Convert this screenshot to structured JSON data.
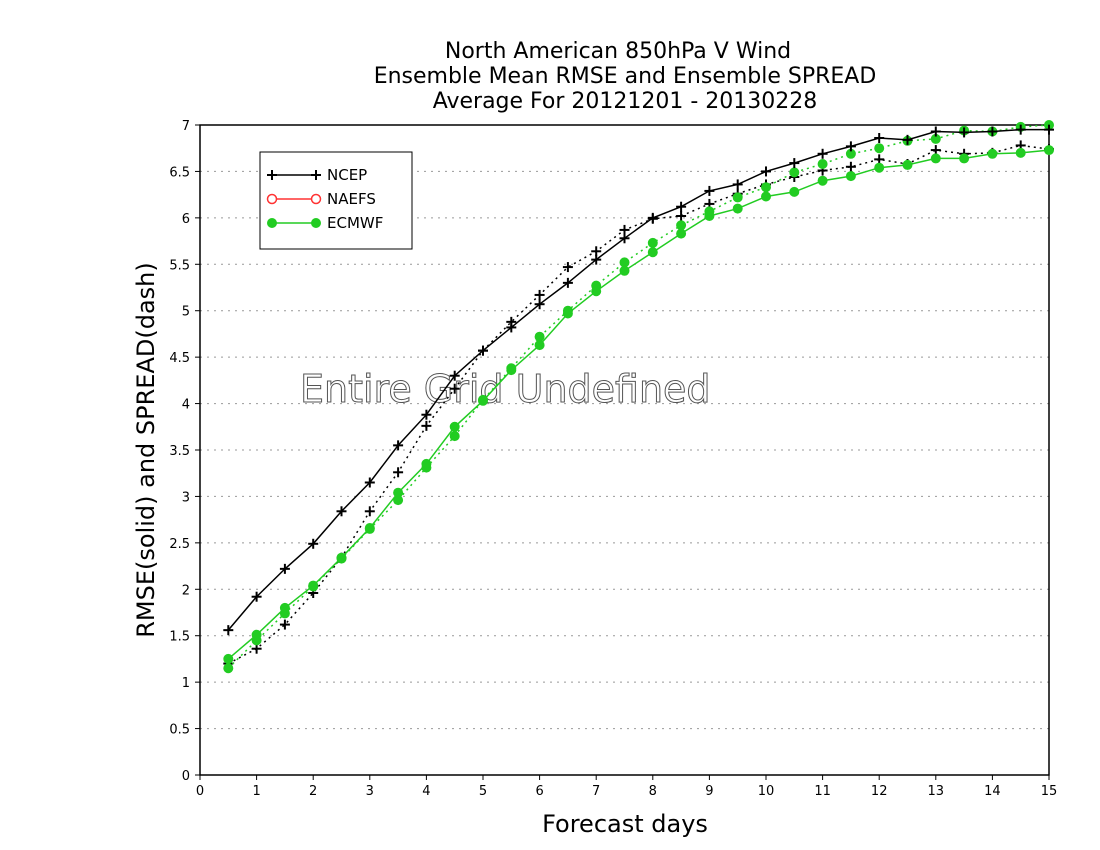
{
  "chart_data": {
    "type": "line",
    "title": [
      "North American 850hPa V Wind",
      "Ensemble Mean RMSE and Ensemble SPREAD",
      "Average For 20121201 - 20130228"
    ],
    "xlabel": "Forecast days",
    "ylabel": "RMSE(solid) and SPREAD(dash)",
    "xlim": [
      0,
      15
    ],
    "ylim": [
      0,
      7
    ],
    "xticks": [
      "0",
      "1",
      "2",
      "3",
      "4",
      "5",
      "6",
      "7",
      "8",
      "9",
      "10",
      "11",
      "12",
      "13",
      "14",
      "15"
    ],
    "yticks": [
      "0",
      "0.5",
      "1",
      "1.5",
      "2",
      "2.5",
      "3",
      "3.5",
      "4",
      "4.5",
      "5",
      "5.5",
      "6",
      "6.5",
      "7"
    ],
    "grid": "horizontal dotted",
    "legend_position": "top-left",
    "annotation": "Entire Grid Undefined",
    "x": [
      0.5,
      1,
      1.5,
      2,
      2.5,
      3,
      3.5,
      4,
      4.5,
      5,
      5.5,
      6,
      6.5,
      7,
      7.5,
      8,
      8.5,
      9,
      9.5,
      10,
      10.5,
      11,
      11.5,
      12,
      12.5,
      13,
      13.5,
      14,
      14.5,
      15
    ],
    "series": [
      {
        "name": "NCEP",
        "metric": "RMSE",
        "style": "solid",
        "marker": "plus",
        "color": "#000000",
        "values": [
          1.56,
          1.92,
          2.22,
          2.49,
          2.84,
          3.15,
          3.55,
          3.88,
          4.3,
          4.57,
          4.82,
          5.07,
          5.3,
          5.55,
          5.78,
          6.0,
          6.12,
          6.29,
          6.36,
          6.5,
          6.59,
          6.69,
          6.77,
          6.86,
          6.84,
          6.93,
          6.92,
          6.93,
          6.95,
          6.95
        ]
      },
      {
        "name": "NCEP",
        "metric": "SPREAD",
        "style": "dash",
        "marker": "plus",
        "color": "#000000",
        "values": [
          1.2,
          1.36,
          1.62,
          1.96,
          2.34,
          2.84,
          3.26,
          3.76,
          4.16,
          4.57,
          4.88,
          5.17,
          5.47,
          5.64,
          5.87,
          5.99,
          6.02,
          6.15,
          6.26,
          6.36,
          6.44,
          6.51,
          6.55,
          6.63,
          6.58,
          6.73,
          6.69,
          6.7,
          6.78,
          6.74
        ]
      },
      {
        "name": "ECMWF",
        "metric": "RMSE",
        "style": "solid",
        "marker": "filled-circle",
        "color": "#22cc22",
        "values": [
          1.25,
          1.51,
          1.8,
          2.04,
          2.34,
          2.66,
          3.04,
          3.35,
          3.75,
          4.03,
          4.36,
          4.63,
          4.97,
          5.21,
          5.43,
          5.63,
          5.83,
          6.02,
          6.1,
          6.23,
          6.28,
          6.4,
          6.45,
          6.54,
          6.57,
          6.64,
          6.64,
          6.69,
          6.7,
          6.73
        ]
      },
      {
        "name": "ECMWF",
        "metric": "SPREAD",
        "style": "dash",
        "marker": "filled-circle",
        "color": "#22cc22",
        "values": [
          1.15,
          1.45,
          1.74,
          2.03,
          2.33,
          2.65,
          2.96,
          3.31,
          3.65,
          4.04,
          4.38,
          4.72,
          5.0,
          5.27,
          5.52,
          5.73,
          5.92,
          6.07,
          6.22,
          6.33,
          6.49,
          6.58,
          6.69,
          6.75,
          6.83,
          6.85,
          6.94,
          6.93,
          6.98,
          7.0
        ]
      }
    ],
    "legend": [
      {
        "label": "NCEP",
        "marker": "plus",
        "color": "#000000"
      },
      {
        "label": "NAEFS",
        "marker": "open-circle",
        "color": "#ff3333"
      },
      {
        "label": "ECMWF",
        "marker": "filled-circle",
        "color": "#22cc22"
      }
    ]
  }
}
